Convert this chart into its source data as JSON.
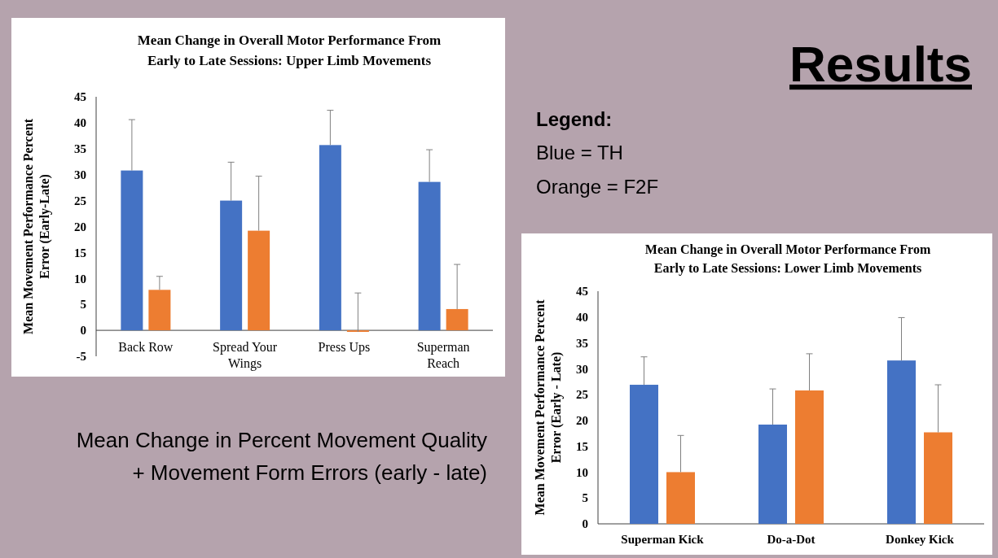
{
  "chart_data": [
    {
      "type": "bar",
      "title": "Mean Change in Overall Motor Performance From Early to Late Sessions: Upper Limb Movements",
      "ylabel": "Mean Movement Performance Percent Error (Early-Late)",
      "categories": [
        "Back Row",
        "Spread Your Wings",
        "Press Ups",
        "Superman Reach"
      ],
      "series": [
        {
          "color": "#4472c4",
          "values": [
            30.8,
            25.0,
            35.7,
            28.6
          ],
          "errors": [
            [
              30.8,
              40.6
            ],
            [
              25.0,
              32.4
            ],
            [
              35.7,
              42.4
            ],
            [
              28.6,
              34.8
            ]
          ]
        },
        {
          "color": "#ed7d31",
          "values": [
            7.8,
            19.2,
            -0.3,
            4.1
          ],
          "errors": [
            [
              7.8,
              10.4
            ],
            [
              19.2,
              29.7
            ],
            [
              -0.3,
              7.2
            ],
            [
              4.1,
              12.7
            ]
          ]
        }
      ],
      "ylim": [
        -5,
        45
      ],
      "yticks": [
        -5,
        0,
        5,
        10,
        15,
        20,
        25,
        30,
        35,
        40,
        45
      ],
      "grid": false
    },
    {
      "type": "bar",
      "title": "Mean Change in Overall Motor Performance From Early to Late Sessions: Lower Limb Movements",
      "ylabel": "Mean Movement Performance Percent Error (Early - Late)",
      "categories": [
        "Superman Kick",
        "Do-a-Dot",
        "Donkey Kick"
      ],
      "series": [
        {
          "color": "#4472c4",
          "values": [
            26.9,
            19.2,
            31.6
          ],
          "errors": [
            [
              26.9,
              32.3
            ],
            [
              19.2,
              26.1
            ],
            [
              31.6,
              39.9
            ]
          ]
        },
        {
          "color": "#ed7d31",
          "values": [
            10.0,
            25.8,
            17.7
          ],
          "errors": [
            [
              10.0,
              17.1
            ],
            [
              25.8,
              32.9
            ],
            [
              17.7,
              26.9
            ]
          ]
        }
      ],
      "ylim": [
        0,
        45
      ],
      "yticks": [
        0,
        5,
        10,
        15,
        20,
        25,
        30,
        35,
        40,
        45
      ],
      "grid": false
    },
    {
      "type": "other",
      "title": "Results",
      "annotations": [
        "Legend:",
        "Blue = TH",
        "Orange = F2F",
        "Mean Change in Percent Movement Quality",
        "+ Movement Form Errors (early - late)"
      ]
    }
  ]
}
